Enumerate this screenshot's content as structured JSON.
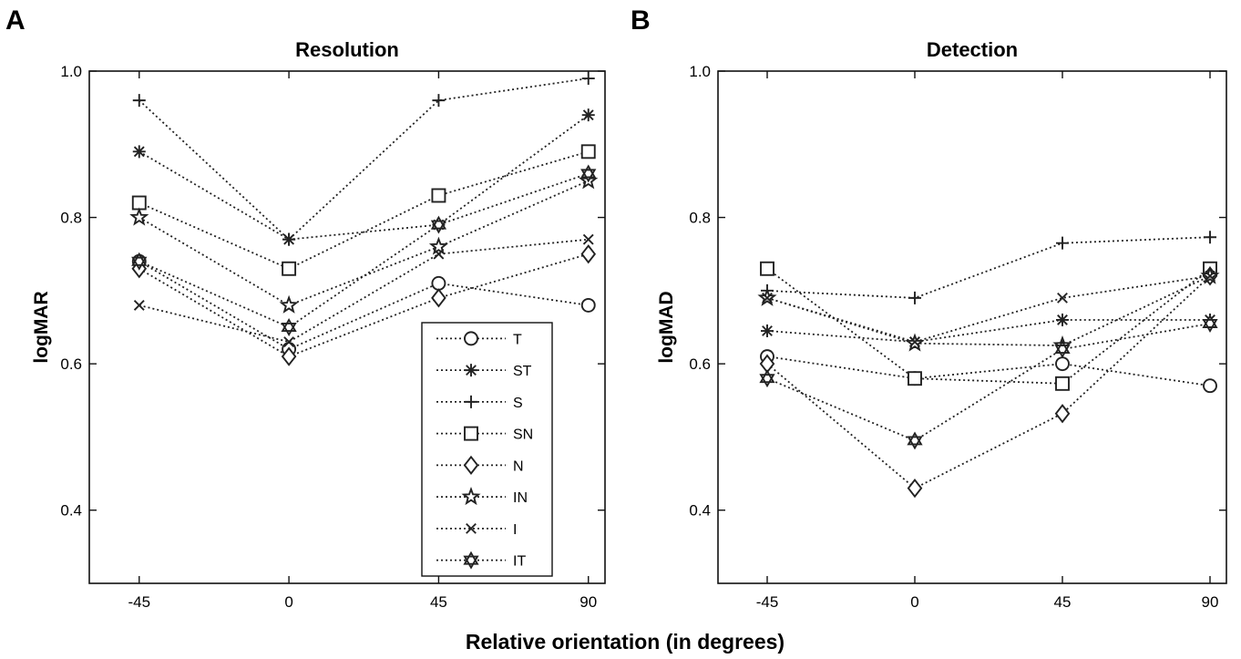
{
  "xlabel": "Relative orientation (in degrees)",
  "colors": {
    "line": "#222222",
    "frame": "#111111",
    "background": "#ffffff"
  },
  "chart_data": [
    {
      "panel": "A",
      "type": "line",
      "title": "Resolution",
      "ylabel": "logMAR",
      "xlabel": "Relative orientation (in degrees)",
      "x": [
        -45,
        0,
        45,
        90
      ],
      "xticks": [
        -45,
        0,
        45,
        90
      ],
      "yticks": [
        0.4,
        0.6,
        0.8,
        1.0
      ],
      "xlim": [
        -60,
        95
      ],
      "ylim": [
        0.3,
        1.0
      ],
      "grid": false,
      "legend_position": "bottom-right",
      "series": [
        {
          "name": "T",
          "marker": "circle",
          "values": [
            0.74,
            0.62,
            0.71,
            0.68
          ]
        },
        {
          "name": "ST",
          "marker": "asterisk",
          "values": [
            0.89,
            0.77,
            0.79,
            0.94
          ]
        },
        {
          "name": "S",
          "marker": "plus",
          "values": [
            0.96,
            0.77,
            0.96,
            0.99
          ]
        },
        {
          "name": "SN",
          "marker": "square",
          "values": [
            0.82,
            0.73,
            0.83,
            0.89
          ]
        },
        {
          "name": "N",
          "marker": "diamond",
          "values": [
            0.73,
            0.61,
            0.69,
            0.75
          ]
        },
        {
          "name": "IN",
          "marker": "star5",
          "values": [
            0.8,
            0.68,
            0.76,
            0.85
          ]
        },
        {
          "name": "I",
          "marker": "cross",
          "values": [
            0.68,
            0.63,
            0.75,
            0.77
          ]
        },
        {
          "name": "IT",
          "marker": "hexagram",
          "values": [
            0.74,
            0.65,
            0.79,
            0.86
          ]
        }
      ]
    },
    {
      "panel": "B",
      "type": "line",
      "title": "Detection",
      "ylabel": "logMAD",
      "xlabel": "Relative orientation (in degrees)",
      "x": [
        -45,
        0,
        45,
        90
      ],
      "xticks": [
        -45,
        0,
        45,
        90
      ],
      "yticks": [
        0.4,
        0.6,
        0.8,
        1.0
      ],
      "xlim": [
        -60,
        95
      ],
      "ylim": [
        0.3,
        1.0
      ],
      "grid": false,
      "series": [
        {
          "name": "T",
          "marker": "circle",
          "values": [
            0.61,
            0.58,
            0.6,
            0.57
          ]
        },
        {
          "name": "ST",
          "marker": "asterisk",
          "values": [
            0.645,
            0.63,
            0.66,
            0.66
          ]
        },
        {
          "name": "S",
          "marker": "plus",
          "values": [
            0.7,
            0.69,
            0.765,
            0.773
          ]
        },
        {
          "name": "SN",
          "marker": "square",
          "values": [
            0.73,
            0.58,
            0.573,
            0.73
          ]
        },
        {
          "name": "N",
          "marker": "diamond",
          "values": [
            0.6,
            0.43,
            0.532,
            0.72
          ]
        },
        {
          "name": "IN",
          "marker": "star5",
          "values": [
            0.69,
            0.628,
            0.625,
            0.72
          ]
        },
        {
          "name": "I",
          "marker": "cross",
          "values": [
            0.69,
            0.63,
            0.69,
            0.72
          ]
        },
        {
          "name": "IT",
          "marker": "hexagram",
          "values": [
            0.58,
            0.495,
            0.62,
            0.655
          ]
        }
      ]
    }
  ]
}
